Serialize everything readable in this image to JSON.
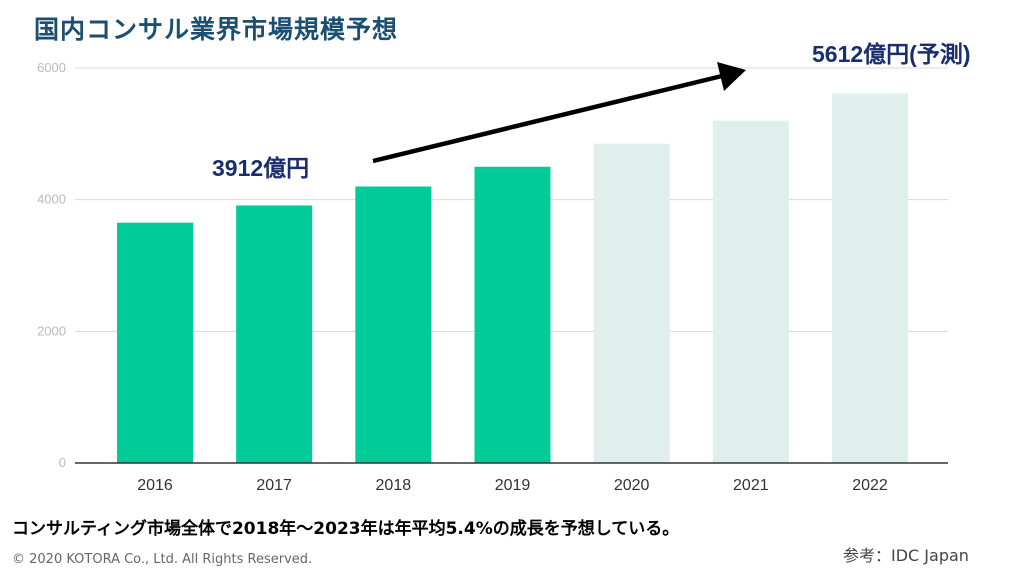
{
  "page": {
    "title": "国内コンサル業界市場規模予想",
    "caption": "コンサルティング市場全体で2018年～2023年は年平均5.4%の成長を予想している。",
    "copyright": "© 2020 KOTORA Co., Ltd. All Rights Reserved.",
    "source": "参考：IDC Japan"
  },
  "chart_data": {
    "type": "bar",
    "categories": [
      "2016",
      "2017",
      "2018",
      "2019",
      "2020",
      "2021",
      "2022"
    ],
    "values": [
      3650,
      3912,
      4200,
      4500,
      4850,
      5200,
      5612
    ],
    "forecast": [
      false,
      false,
      false,
      false,
      true,
      true,
      true
    ],
    "ylim": [
      0,
      6000
    ],
    "yticks": [
      "0",
      "2000",
      "4000",
      "6000"
    ],
    "grid": true,
    "title": "",
    "xlabel": "",
    "ylabel": "",
    "colors": {
      "actual": "#00cc99",
      "forecast": "#deefec",
      "grid": "#d9d9d9",
      "axis": "#333333",
      "tick_label": "#bbbbbb",
      "category_label": "#333333",
      "annotation": "#1a2e6e",
      "arrow": "#000000"
    },
    "annotations": [
      {
        "text": "3912億円"
      },
      {
        "text": "5612億円(予測)"
      }
    ]
  }
}
